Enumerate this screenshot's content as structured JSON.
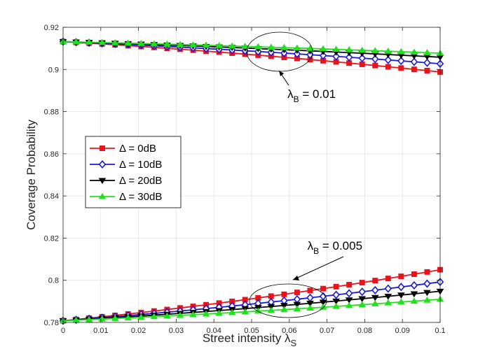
{
  "chart_data": {
    "type": "line",
    "title": "",
    "xlabel": "Street intensity",
    "xlabel_symbol": "λ",
    "xlabel_sub": "S",
    "ylabel": "Coverage Probability",
    "xlim": [
      0,
      0.1
    ],
    "ylim": [
      0.78,
      0.92
    ],
    "xticks": [
      "0",
      "0.01",
      "0.02",
      "0.03",
      "0.04",
      "0.05",
      "0.06",
      "0.07",
      "0.08",
      "0.09",
      "0.1"
    ],
    "yticks": [
      "0.78",
      "0.8",
      "0.82",
      "0.84",
      "0.86",
      "0.88",
      "0.9",
      "0.92"
    ],
    "grid": true,
    "legend_position": "middle-left",
    "points_per_curve": 30,
    "groups": [
      {
        "name": "λB = 0.01",
        "series": [
          {
            "name": "Δ = 0dB",
            "start": 0.9132,
            "end": 0.8988
          },
          {
            "name": "Δ = 10dB",
            "start": 0.9132,
            "end": 0.9027
          },
          {
            "name": "Δ = 20dB",
            "start": 0.9132,
            "end": 0.9058
          },
          {
            "name": "Δ = 30dB",
            "start": 0.9132,
            "end": 0.9077
          }
        ]
      },
      {
        "name": "λB = 0.005",
        "series": [
          {
            "name": "Δ = 0dB",
            "start": 0.7808,
            "end": 0.805
          },
          {
            "name": "Δ = 10dB",
            "start": 0.7808,
            "end": 0.7992
          },
          {
            "name": "Δ = 20dB",
            "start": 0.7808,
            "end": 0.7948
          },
          {
            "name": "Δ = 30dB",
            "start": 0.7808,
            "end": 0.791
          }
        ]
      }
    ],
    "legend": [
      {
        "label": "Δ = 0dB",
        "color": "#e8141c",
        "marker": "square"
      },
      {
        "label": "Δ = 10dB",
        "color": "#1a1adb",
        "marker": "diamond"
      },
      {
        "label": "Δ = 20dB",
        "color": "#000000",
        "marker": "triangle-down"
      },
      {
        "label": "Δ = 30dB",
        "color": "#22e01e",
        "marker": "triangle-up"
      }
    ],
    "annotations": [
      {
        "symbol": "λ",
        "sub": "B",
        "text": " = 0.01",
        "x": 0.0595,
        "y": 0.8865
      },
      {
        "symbol": "λ",
        "sub": "B",
        "text": " = 0.005",
        "x": 0.0648,
        "y": 0.8145
      }
    ]
  }
}
